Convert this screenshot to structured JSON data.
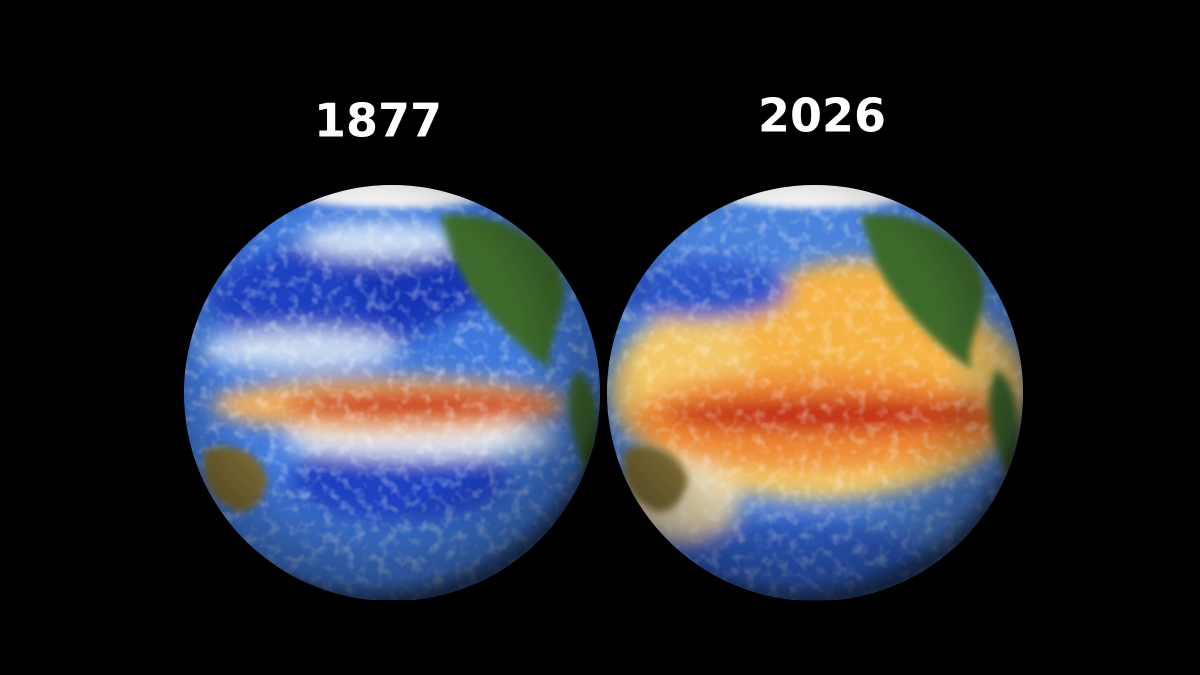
{
  "panels": [
    {
      "label": "1877"
    },
    {
      "label": "2026"
    }
  ]
}
